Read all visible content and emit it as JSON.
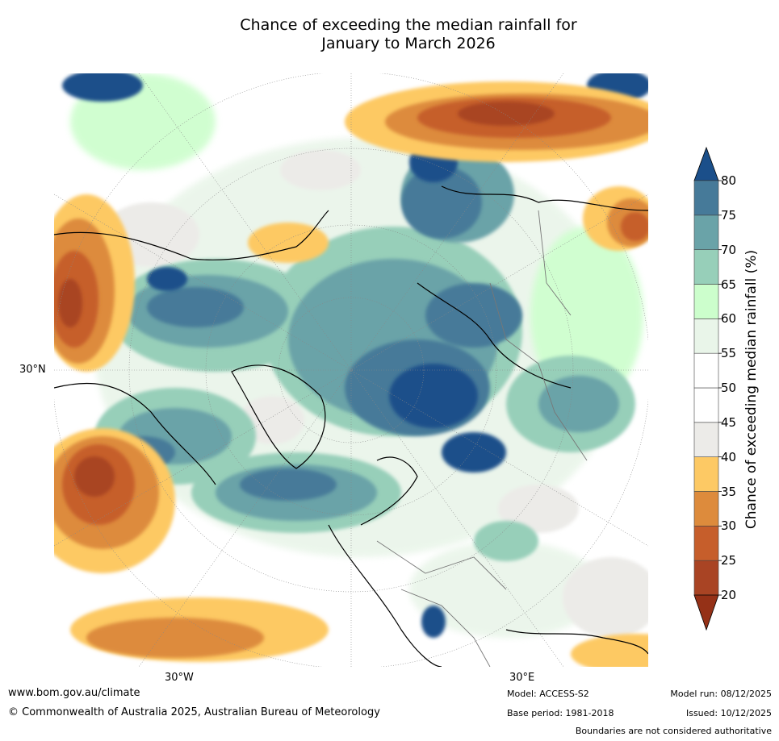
{
  "title_line1": "Chance of exceeding the median rainfall for",
  "title_line2": "January to March 2026",
  "axis": {
    "lat_30n": "30°N",
    "lon_30w": "30°W",
    "lon_30e": "30°E"
  },
  "colorbar": {
    "title": "Chance of exceeding median rainfall (%)",
    "ticks": [
      "20",
      "25",
      "30",
      "35",
      "40",
      "45",
      "50",
      "55",
      "60",
      "65",
      "70",
      "75",
      "80"
    ],
    "colors": [
      "#a94424",
      "#c65e2b",
      "#dd8b3c",
      "#fdc964",
      "#ecebe8",
      "#ffffff",
      "#ffffff",
      "#e9f5e9",
      "#ccfecc",
      "#97cfb9",
      "#6aa3a8",
      "#467a99"
    ],
    "low_color": "#953117",
    "high_color": "#1b4f8a"
  },
  "footer": {
    "website": "www.bom.gov.au/climate",
    "copyright": "© Commonwealth of Australia 2025, Australian Bureau of Meteorology",
    "model": "Model: ACCESS-S2",
    "base_period": "Base period: 1981-2018",
    "model_run": "Model run: 08/12/2025",
    "issued": "Issued: 10/12/2025",
    "disclaimer": "Boundaries are not considered authoritative"
  }
}
